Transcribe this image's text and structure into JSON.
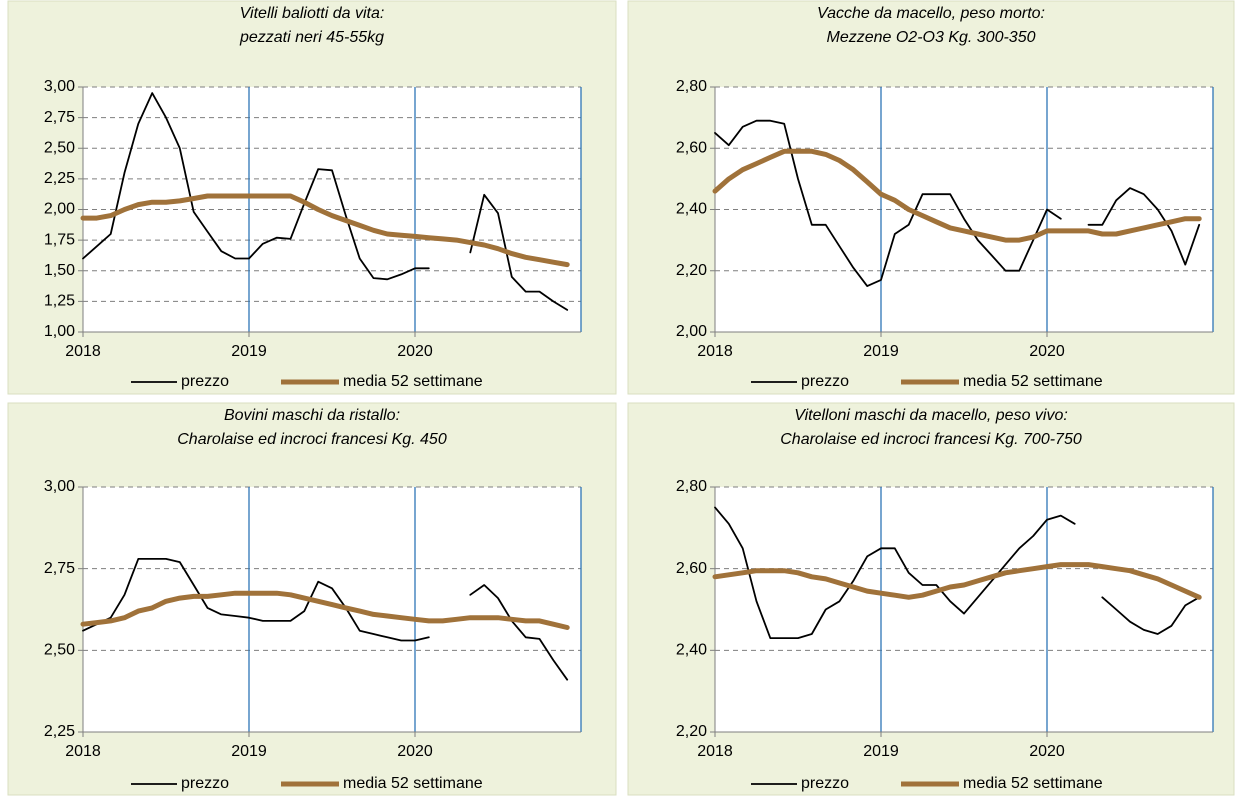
{
  "chart_data": [
    {
      "type": "line",
      "title": [
        "Vitelli baliotti da vita:",
        "pezzati neri 45-55kg"
      ],
      "x": [
        2018,
        2018.083,
        2018.167,
        2018.25,
        2018.333,
        2018.417,
        2018.5,
        2018.583,
        2018.667,
        2018.75,
        2018.833,
        2018.917,
        2019,
        2019.083,
        2019.167,
        2019.25,
        2019.333,
        2019.417,
        2019.5,
        2019.583,
        2019.667,
        2019.75,
        2019.833,
        2019.917,
        2020,
        2020.083,
        2020.167,
        2020.25,
        2020.333,
        2020.417,
        2020.5,
        2020.583,
        2020.667,
        2020.75,
        2020.833,
        2020.917
      ],
      "series": [
        {
          "name": "prezzo",
          "color": "#000000",
          "values": [
            1.6,
            1.7,
            1.8,
            2.3,
            2.7,
            2.95,
            2.75,
            2.5,
            1.98,
            1.82,
            1.66,
            1.6,
            1.6,
            1.72,
            1.77,
            1.76,
            2.05,
            2.33,
            2.32,
            1.95,
            1.6,
            1.44,
            1.43,
            1.47,
            1.52,
            1.52,
            null,
            null,
            1.65,
            2.12,
            1.97,
            1.45,
            1.33,
            1.33,
            1.25,
            1.18
          ]
        },
        {
          "name": "media 52 settimane",
          "color": "#a0723a",
          "values": [
            1.93,
            1.93,
            1.95,
            2.0,
            2.04,
            2.06,
            2.06,
            2.07,
            2.09,
            2.11,
            2.11,
            2.11,
            2.11,
            2.11,
            2.11,
            2.11,
            2.06,
            2.0,
            1.95,
            1.91,
            1.87,
            1.83,
            1.8,
            1.79,
            1.78,
            1.77,
            1.76,
            1.75,
            1.73,
            1.71,
            1.68,
            1.64,
            1.61,
            1.59,
            1.57,
            1.55
          ]
        }
      ],
      "xlim": [
        2018,
        2021
      ],
      "xticks": [
        2018,
        2019,
        2020
      ],
      "ylim": [
        1,
        3
      ],
      "yticks": [
        {
          "value": 1,
          "label": "1,00"
        },
        {
          "value": 1.25,
          "label": "1,25"
        },
        {
          "value": 1.5,
          "label": "1,50"
        },
        {
          "value": 1.75,
          "label": "1,75"
        },
        {
          "value": 2,
          "label": "2,00"
        },
        {
          "value": 2.25,
          "label": "2,25"
        },
        {
          "value": 2.5,
          "label": "2,50"
        },
        {
          "value": 2.75,
          "label": "2,75"
        },
        {
          "value": 3,
          "label": "3,00"
        }
      ],
      "grid": true
    },
    {
      "type": "line",
      "title": [
        "Vacche da macello, peso morto:",
        "Mezzene O2-O3 Kg. 300-350"
      ],
      "x": [
        2018,
        2018.083,
        2018.167,
        2018.25,
        2018.333,
        2018.417,
        2018.5,
        2018.583,
        2018.667,
        2018.75,
        2018.833,
        2018.917,
        2019,
        2019.083,
        2019.167,
        2019.25,
        2019.333,
        2019.417,
        2019.5,
        2019.583,
        2019.667,
        2019.75,
        2019.833,
        2019.917,
        2020,
        2020.083,
        2020.167,
        2020.25,
        2020.333,
        2020.417,
        2020.5,
        2020.583,
        2020.667,
        2020.75,
        2020.833,
        2020.917
      ],
      "series": [
        {
          "name": "prezzo",
          "color": "#000000",
          "values": [
            2.65,
            2.61,
            2.67,
            2.69,
            2.69,
            2.68,
            2.5,
            2.35,
            2.35,
            2.28,
            2.21,
            2.15,
            2.17,
            2.32,
            2.35,
            2.45,
            2.45,
            2.45,
            2.37,
            2.3,
            2.25,
            2.2,
            2.2,
            2.3,
            2.4,
            2.37,
            null,
            2.35,
            2.35,
            2.43,
            2.47,
            2.45,
            2.4,
            2.33,
            2.22,
            2.35
          ]
        },
        {
          "name": "media 52 settimane",
          "color": "#a0723a",
          "values": [
            2.46,
            2.5,
            2.53,
            2.55,
            2.57,
            2.59,
            2.59,
            2.59,
            2.58,
            2.56,
            2.53,
            2.49,
            2.45,
            2.43,
            2.4,
            2.38,
            2.36,
            2.34,
            2.33,
            2.32,
            2.31,
            2.3,
            2.3,
            2.31,
            2.33,
            2.33,
            2.33,
            2.33,
            2.32,
            2.32,
            2.33,
            2.34,
            2.35,
            2.36,
            2.37,
            2.37
          ]
        }
      ],
      "xlim": [
        2018,
        2021
      ],
      "xticks": [
        2018,
        2019,
        2020
      ],
      "ylim": [
        2,
        2.8
      ],
      "yticks": [
        {
          "value": 2,
          "label": "2,00"
        },
        {
          "value": 2.2,
          "label": "2,20"
        },
        {
          "value": 2.4,
          "label": "2,40"
        },
        {
          "value": 2.6,
          "label": "2,60"
        },
        {
          "value": 2.8,
          "label": "2,80"
        }
      ],
      "grid": true
    },
    {
      "type": "line",
      "title": [
        "Bovini maschi da ristallo:",
        "Charolaise ed incroci francesi Kg. 450"
      ],
      "x": [
        2018,
        2018.083,
        2018.167,
        2018.25,
        2018.333,
        2018.417,
        2018.5,
        2018.583,
        2018.667,
        2018.75,
        2018.833,
        2018.917,
        2019,
        2019.083,
        2019.167,
        2019.25,
        2019.333,
        2019.417,
        2019.5,
        2019.583,
        2019.667,
        2019.75,
        2019.833,
        2019.917,
        2020,
        2020.083,
        2020.167,
        2020.25,
        2020.333,
        2020.417,
        2020.5,
        2020.583,
        2020.667,
        2020.75,
        2020.833,
        2020.917
      ],
      "series": [
        {
          "name": "prezzo",
          "color": "#000000",
          "values": [
            2.56,
            2.58,
            2.6,
            2.67,
            2.78,
            2.78,
            2.78,
            2.77,
            2.7,
            2.63,
            2.61,
            2.605,
            2.6,
            2.59,
            2.59,
            2.59,
            2.62,
            2.71,
            2.69,
            2.63,
            2.56,
            2.55,
            2.54,
            2.53,
            2.53,
            2.54,
            null,
            null,
            2.67,
            2.7,
            2.66,
            2.59,
            2.54,
            2.535,
            2.47,
            2.41
          ]
        },
        {
          "name": "media 52 settimane",
          "color": "#a0723a",
          "values": [
            2.58,
            2.585,
            2.59,
            2.6,
            2.62,
            2.63,
            2.65,
            2.66,
            2.665,
            2.665,
            2.67,
            2.675,
            2.675,
            2.675,
            2.675,
            2.67,
            2.66,
            2.65,
            2.64,
            2.63,
            2.62,
            2.61,
            2.605,
            2.6,
            2.595,
            2.59,
            2.59,
            2.595,
            2.6,
            2.6,
            2.6,
            2.595,
            2.59,
            2.59,
            2.58,
            2.57
          ]
        }
      ],
      "xlim": [
        2018,
        2021
      ],
      "xticks": [
        2018,
        2019,
        2020
      ],
      "ylim": [
        2.25,
        3
      ],
      "yticks": [
        {
          "value": 2.25,
          "label": "2,25"
        },
        {
          "value": 2.5,
          "label": "2,50"
        },
        {
          "value": 2.75,
          "label": "2,75"
        },
        {
          "value": 3,
          "label": "3,00"
        }
      ],
      "grid": true
    },
    {
      "type": "line",
      "title": [
        "Vitelloni maschi da macello, peso vivo:",
        "Charolaise ed incroci francesi Kg. 700-750"
      ],
      "x": [
        2018,
        2018.083,
        2018.167,
        2018.25,
        2018.333,
        2018.417,
        2018.5,
        2018.583,
        2018.667,
        2018.75,
        2018.833,
        2018.917,
        2019,
        2019.083,
        2019.167,
        2019.25,
        2019.333,
        2019.417,
        2019.5,
        2019.583,
        2019.667,
        2019.75,
        2019.833,
        2019.917,
        2020,
        2020.083,
        2020.167,
        2020.25,
        2020.333,
        2020.417,
        2020.5,
        2020.583,
        2020.667,
        2020.75,
        2020.833,
        2020.917
      ],
      "series": [
        {
          "name": "prezzo",
          "color": "#000000",
          "values": [
            2.75,
            2.71,
            2.65,
            2.52,
            2.43,
            2.43,
            2.43,
            2.44,
            2.5,
            2.52,
            2.57,
            2.63,
            2.65,
            2.65,
            2.59,
            2.56,
            2.56,
            2.52,
            2.49,
            2.53,
            2.57,
            2.61,
            2.65,
            2.68,
            2.72,
            2.73,
            2.71,
            null,
            2.53,
            2.5,
            2.47,
            2.45,
            2.44,
            2.46,
            2.51,
            2.53
          ]
        },
        {
          "name": "media 52 settimane",
          "color": "#a0723a",
          "values": [
            2.58,
            2.585,
            2.59,
            2.595,
            2.595,
            2.595,
            2.59,
            2.58,
            2.575,
            2.565,
            2.555,
            2.545,
            2.54,
            2.535,
            2.53,
            2.535,
            2.545,
            2.555,
            2.56,
            2.57,
            2.58,
            2.59,
            2.595,
            2.6,
            2.605,
            2.61,
            2.61,
            2.61,
            2.605,
            2.6,
            2.595,
            2.585,
            2.575,
            2.56,
            2.545,
            2.53
          ]
        }
      ],
      "xlim": [
        2018,
        2021
      ],
      "xticks": [
        2018,
        2019,
        2020
      ],
      "ylim": [
        2.2,
        2.8
      ],
      "yticks": [
        {
          "value": 2.2,
          "label": "2,20"
        },
        {
          "value": 2.4,
          "label": "2,40"
        },
        {
          "value": 2.6,
          "label": "2,60"
        },
        {
          "value": 2.8,
          "label": "2,80"
        }
      ],
      "grid": true
    }
  ]
}
